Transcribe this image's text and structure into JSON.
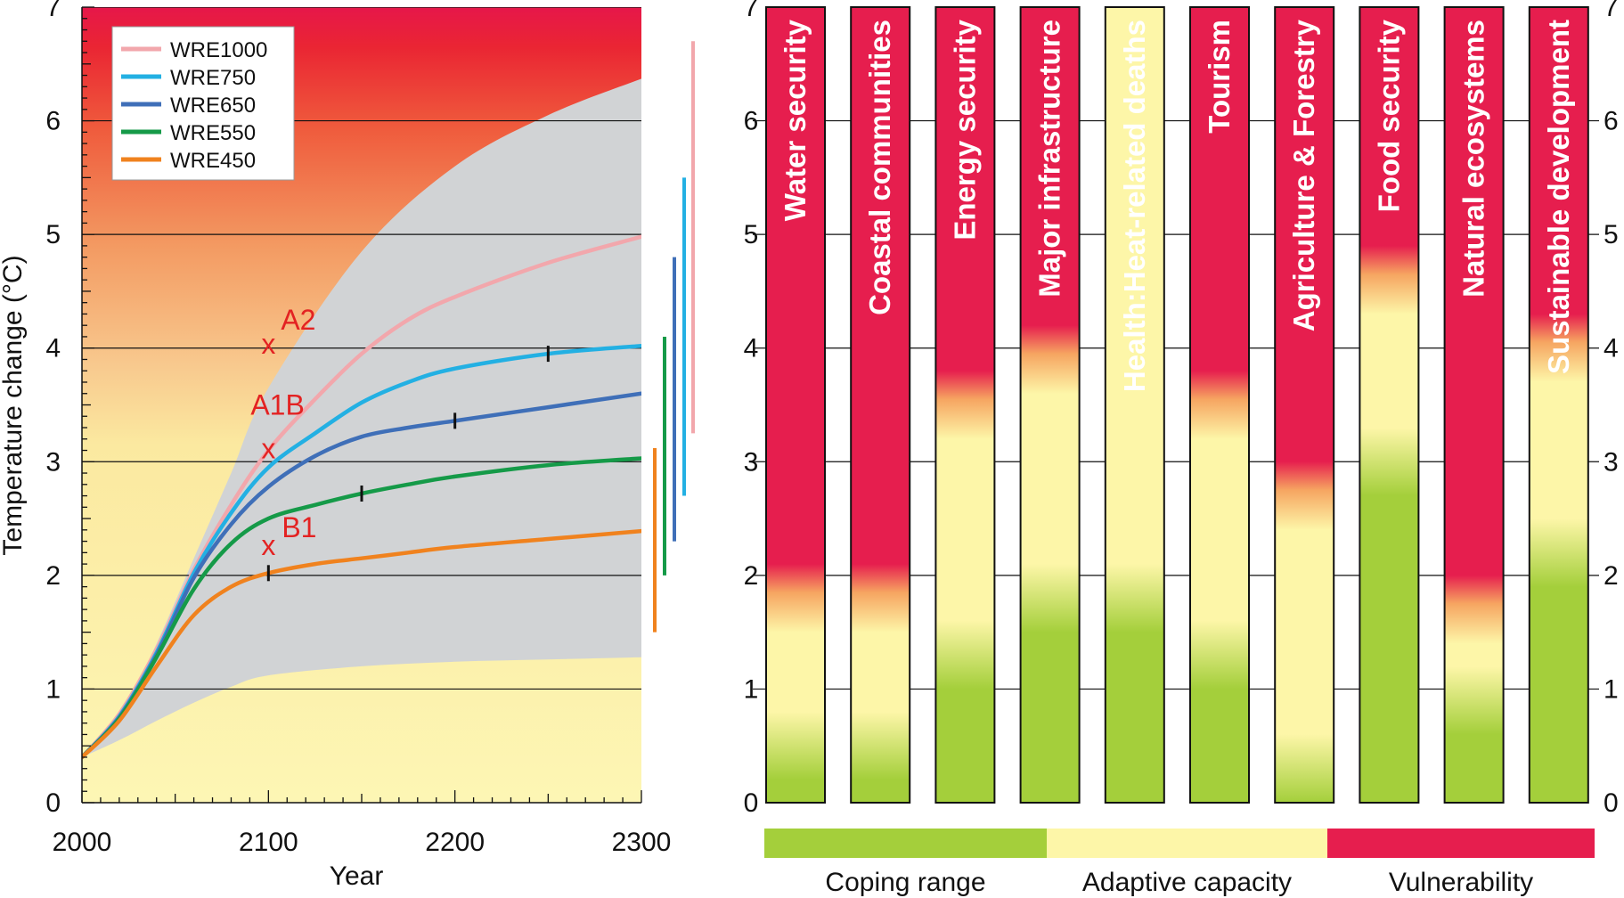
{
  "chart_data": [
    {
      "type": "line",
      "xlabel": "Year",
      "ylabel": "Temperature change (°C)",
      "xlim": [
        2000,
        2300
      ],
      "ylim": [
        0,
        7
      ],
      "x_ticks": [
        "2000",
        "2100",
        "2200",
        "2300"
      ],
      "y_ticks": [
        "0",
        "1",
        "2",
        "3",
        "4",
        "5",
        "6",
        "7"
      ],
      "grid": "horizontal",
      "legend_position": "top-left",
      "background_gradient": "yellow (low) to orange to red (high)",
      "uncertainty_band": {
        "x": [
          2000,
          2020,
          2040,
          2060,
          2080,
          2100,
          2150,
          2200,
          2250,
          2300
        ],
        "lower": [
          0.4,
          0.55,
          0.72,
          0.88,
          1.02,
          1.12,
          1.2,
          1.24,
          1.26,
          1.28
        ],
        "upper": [
          0.4,
          0.75,
          1.4,
          2.15,
          2.9,
          3.65,
          4.85,
          5.6,
          6.05,
          6.37
        ]
      },
      "series": [
        {
          "name": "WRE1000",
          "color": "#f2a7ac",
          "x": [
            2000,
            2020,
            2040,
            2060,
            2080,
            2100,
            2125,
            2150,
            2175,
            2200,
            2250,
            2300
          ],
          "y": [
            0.4,
            0.78,
            1.35,
            2.05,
            2.62,
            3.1,
            3.55,
            3.95,
            4.25,
            4.45,
            4.75,
            4.98
          ]
        },
        {
          "name": "WRE750",
          "color": "#23b0e3",
          "x": [
            2000,
            2020,
            2040,
            2060,
            2080,
            2100,
            2125,
            2150,
            2175,
            2200,
            2250,
            2300
          ],
          "y": [
            0.4,
            0.76,
            1.32,
            2.02,
            2.55,
            2.95,
            3.25,
            3.52,
            3.7,
            3.82,
            3.95,
            4.02
          ]
        },
        {
          "name": "WRE650",
          "color": "#3f6fb8",
          "x": [
            2000,
            2020,
            2040,
            2060,
            2080,
            2100,
            2125,
            2150,
            2175,
            2200,
            2250,
            2300
          ],
          "y": [
            0.4,
            0.75,
            1.3,
            1.98,
            2.45,
            2.78,
            3.05,
            3.22,
            3.3,
            3.36,
            3.48,
            3.6
          ]
        },
        {
          "name": "WRE550",
          "color": "#159a48",
          "x": [
            2000,
            2020,
            2040,
            2060,
            2080,
            2100,
            2125,
            2150,
            2175,
            2200,
            2250,
            2300
          ],
          "y": [
            0.4,
            0.74,
            1.28,
            1.88,
            2.28,
            2.5,
            2.62,
            2.72,
            2.8,
            2.87,
            2.97,
            3.03
          ]
        },
        {
          "name": "WRE450",
          "color": "#f0821e",
          "x": [
            2000,
            2020,
            2040,
            2060,
            2080,
            2100,
            2125,
            2150,
            2175,
            2200,
            2250,
            2300
          ],
          "y": [
            0.4,
            0.72,
            1.2,
            1.65,
            1.9,
            2.02,
            2.1,
            2.15,
            2.2,
            2.25,
            2.32,
            2.39
          ]
        }
      ],
      "stabilisation_markers": [
        {
          "series": "WRE750",
          "x": 2250,
          "y": 3.95
        },
        {
          "series": "WRE650",
          "x": 2200,
          "y": 3.36
        },
        {
          "series": "WRE550",
          "x": 2150,
          "y": 2.72
        },
        {
          "series": "WRE450",
          "x": 2100,
          "y": 2.02
        }
      ],
      "scenario_points": [
        {
          "label": "A2",
          "x": 2100,
          "y": 4.02
        },
        {
          "label": "A1B",
          "x": 2100,
          "y": 3.1
        },
        {
          "label": "B1",
          "x": 2100,
          "y": 2.25
        }
      ],
      "range_bars": [
        {
          "series": "WRE450",
          "color": "#f0821e",
          "low": 1.5,
          "high": 3.12
        },
        {
          "series": "WRE550",
          "color": "#159a48",
          "low": 2.0,
          "high": 4.1
        },
        {
          "series": "WRE650",
          "color": "#3f6fb8",
          "low": 2.3,
          "high": 4.8
        },
        {
          "series": "WRE750",
          "color": "#23b0e3",
          "low": 2.7,
          "high": 5.5
        },
        {
          "series": "WRE1000",
          "color": "#f2a7ac",
          "low": 3.25,
          "high": 6.7
        }
      ]
    },
    {
      "type": "bar",
      "ylim": [
        0,
        7
      ],
      "y_ticks": [
        "0",
        "1",
        "2",
        "3",
        "4",
        "5",
        "6",
        "7"
      ],
      "grid": "horizontal",
      "zones_note": "each column coloured green (coping range) to yellow (adaptive capacity) to red (vulnerability); values give approximate temperature of zone transitions",
      "categories": [
        {
          "label": "Water security",
          "adaptive_from": 0.5,
          "vulnerable_from": 2.1
        },
        {
          "label": "Coastal communities",
          "adaptive_from": 0.5,
          "vulnerable_from": 2.1
        },
        {
          "label": "Energy security",
          "adaptive_from": 1.3,
          "vulnerable_from": 3.8
        },
        {
          "label": "Major infrastructure",
          "adaptive_from": 1.8,
          "vulnerable_from": 4.2
        },
        {
          "label": "Health:Heat-related deaths",
          "adaptive_from": 1.8,
          "vulnerable_from": 7.0
        },
        {
          "label": "Tourism",
          "adaptive_from": 1.3,
          "vulnerable_from": 3.8
        },
        {
          "label": "Agriculture & Forestry",
          "adaptive_from": 0.3,
          "vulnerable_from": 3.0
        },
        {
          "label": "Food security",
          "adaptive_from": 3.0,
          "vulnerable_from": 4.9
        },
        {
          "label": "Natural ecosystems",
          "adaptive_from": 0.9,
          "vulnerable_from": 2.0
        },
        {
          "label": "Sustainable development",
          "adaptive_from": 2.2,
          "vulnerable_from": 4.3
        }
      ],
      "legend": [
        {
          "label": "Coping range",
          "color": "#a4cf3b"
        },
        {
          "label": "Adaptive capacity",
          "color": "#fdf6a8"
        },
        {
          "label": "Vulnerability",
          "color": "#e61e4e"
        }
      ]
    }
  ]
}
